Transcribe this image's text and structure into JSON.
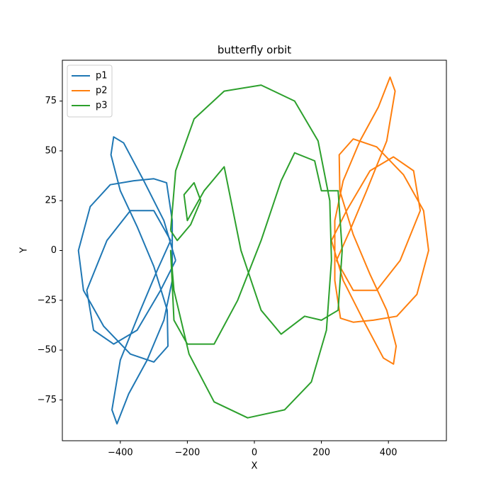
{
  "chart_data": {
    "type": "line",
    "title": "butterfly orbit",
    "x_label": "X",
    "y_label": "Y",
    "xlim": [
      -573,
      573
    ],
    "ylim": [
      -95.5,
      95.5
    ],
    "xticks": [
      {
        "value": -400,
        "label": "−400"
      },
      {
        "value": -200,
        "label": "−200"
      },
      0,
      200,
      400
    ],
    "yticks": [
      {
        "value": -75,
        "label": "−75"
      },
      {
        "value": -50,
        "label": "−50"
      },
      {
        "value": -25,
        "label": "−25"
      },
      0,
      25,
      50,
      75
    ],
    "legend": "upper left",
    "series": [
      {
        "name": "p1",
        "color": "#1f77b4",
        "x": [
          -235,
          -270,
          -330,
          -390,
          -420,
          -428,
          -400,
          -350,
          -300,
          -260,
          -258,
          -300,
          -370,
          -450,
          -510,
          -525,
          -490,
          -430,
          -360,
          -300,
          -262,
          -245,
          -245,
          -270,
          -320,
          -375,
          -410,
          -425,
          -400,
          -340,
          -290,
          -250,
          -300,
          -370,
          -440,
          -500,
          -480,
          -420,
          -350,
          -280,
          -235
        ],
        "values": [
          -5,
          15,
          35,
          54,
          57,
          48,
          30,
          12,
          -8,
          -30,
          -48,
          -56,
          -52,
          -38,
          -20,
          0,
          22,
          33,
          35,
          36,
          34,
          15,
          -15,
          -35,
          -55,
          -72,
          -87,
          -80,
          -55,
          -30,
          -10,
          5,
          20,
          20,
          5,
          -20,
          -40,
          -47,
          -40,
          -20,
          -5
        ]
      },
      {
        "name": "p2",
        "color": "#ff7f0e",
        "x": [
          230,
          265,
          325,
          385,
          415,
          423,
          395,
          345,
          295,
          255,
          253,
          295,
          365,
          445,
          505,
          520,
          485,
          425,
          355,
          295,
          257,
          240,
          240,
          265,
          315,
          370,
          405,
          420,
          395,
          335,
          285,
          245,
          295,
          365,
          435,
          495,
          475,
          415,
          345,
          275,
          230
        ],
        "values": [
          5,
          -15,
          -35,
          -54,
          -57,
          -48,
          -30,
          -12,
          8,
          30,
          48,
          56,
          52,
          38,
          20,
          0,
          -22,
          -33,
          -35,
          -36,
          -34,
          -15,
          15,
          35,
          55,
          72,
          87,
          80,
          55,
          30,
          10,
          -5,
          -20,
          -20,
          -5,
          20,
          40,
          47,
          40,
          20,
          5
        ]
      },
      {
        "name": "p3",
        "color": "#2ca02c",
        "x": [
          -250,
          -235,
          -180,
          -90,
          20,
          120,
          190,
          225,
          230,
          215,
          170,
          90,
          -20,
          -120,
          -195,
          -240,
          -250,
          -240,
          -200,
          -120,
          -50,
          20,
          80,
          120,
          180,
          200,
          250,
          262,
          250,
          200,
          150,
          80,
          20,
          -40,
          -90,
          -150,
          -200,
          -210,
          -180,
          -160,
          -190,
          -230,
          -250
        ],
        "values": [
          10,
          40,
          66,
          80,
          83,
          75,
          55,
          25,
          -5,
          -40,
          -66,
          -80,
          -84,
          -76,
          -52,
          -20,
          0,
          -35,
          -47,
          -47,
          -25,
          5,
          35,
          49,
          45,
          30,
          30,
          0,
          -30,
          -35,
          -33,
          -42,
          -30,
          0,
          42,
          30,
          15,
          28,
          34,
          25,
          13,
          5,
          10
        ]
      }
    ]
  }
}
